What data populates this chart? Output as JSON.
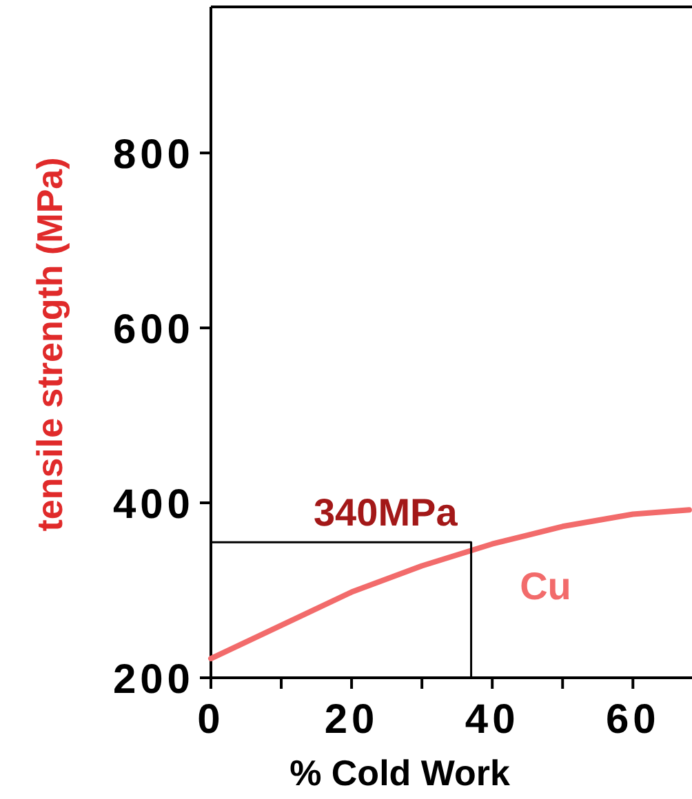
{
  "chart_data": {
    "type": "line",
    "xlabel": "% Cold Work",
    "ylabel": "tensile strength (MPa)",
    "xlim": [
      0,
      68.4
    ],
    "ylim": [
      200,
      967
    ],
    "xticks": [
      0,
      {
        "value": 10,
        "label": null
      },
      20,
      {
        "value": 30,
        "label": null
      },
      40,
      {
        "value": 50,
        "label": null
      },
      60
    ],
    "yticks": [
      200,
      400,
      600,
      800
    ],
    "annotations": [
      {
        "text": "340MPa",
        "x": 37,
        "y": 355
      }
    ],
    "series": [
      {
        "name": "Cu",
        "color": "#f26b6b",
        "x": [
          0,
          10,
          20,
          30,
          40,
          50,
          60,
          68
        ],
        "values": [
          222,
          260,
          298,
          328,
          353,
          373,
          387,
          392
        ]
      },
      {
        "color": "#000000",
        "x": [
          0,
          37,
          37
        ],
        "values": [
          355,
          355,
          200
        ],
        "type": "line"
      }
    ]
  }
}
